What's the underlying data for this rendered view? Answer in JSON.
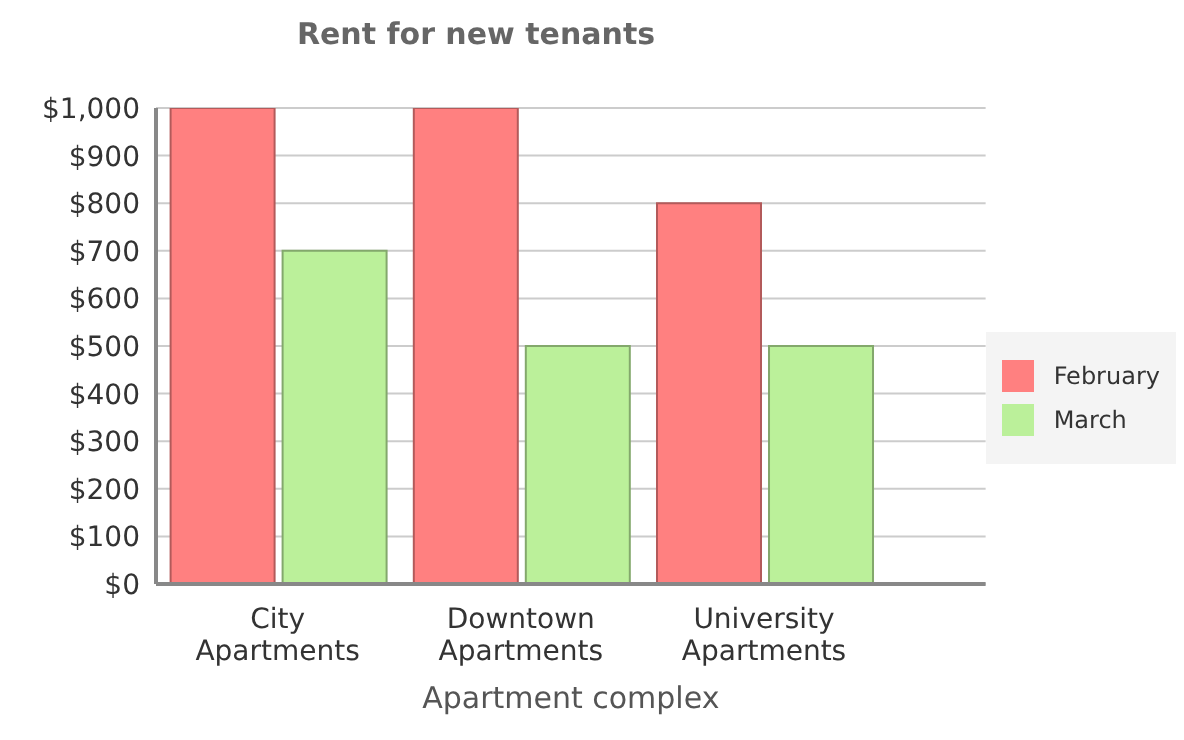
{
  "chart_data": {
    "type": "bar",
    "title": "Rent for new tenants",
    "xlabel": "Apartment complex",
    "categories": [
      "City Apartments",
      "Downtown Apartments",
      "University Apartments"
    ],
    "series": [
      {
        "name": "February",
        "color": "#ff8080",
        "values": [
          1000,
          1000,
          800
        ]
      },
      {
        "name": "March",
        "color": "#bbf09a",
        "values": [
          700,
          500,
          500
        ]
      }
    ],
    "ylim": [
      0,
      1000
    ],
    "yticks": [
      {
        "value": 0,
        "label": "$0"
      },
      {
        "value": 100,
        "label": "$100"
      },
      {
        "value": 200,
        "label": "$200"
      },
      {
        "value": 300,
        "label": "$300"
      },
      {
        "value": 400,
        "label": "$400"
      },
      {
        "value": 500,
        "label": "$500"
      },
      {
        "value": 600,
        "label": "$600"
      },
      {
        "value": 700,
        "label": "$700"
      },
      {
        "value": 800,
        "label": "$800"
      },
      {
        "value": 900,
        "label": "$900"
      },
      {
        "value": 1000,
        "label": "$1,000"
      }
    ],
    "grid": "y",
    "legend": "right"
  }
}
